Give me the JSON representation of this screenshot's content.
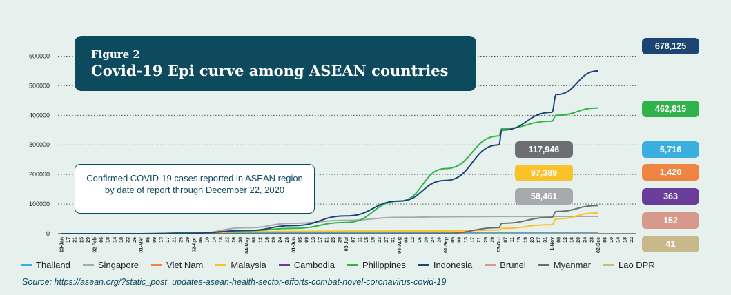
{
  "figure": {
    "label": "Figure 2",
    "title": "Covid-19 Epi curve among ASEAN countries"
  },
  "note": "Confirmed COVID-19 cases reported in ASEAN region by date of report through December 22, 2020",
  "source": "Source: https://asean.org/?static_post=updates-asean-health-sector-efforts-combat-novel-coronavirus-covid-19",
  "colors": {
    "thailand": "#3aaee0",
    "singapore": "#a7a9ac",
    "vietnam": "#f08543",
    "malaysia": "#fbc12a",
    "cambodia": "#6a3d9a",
    "philippines": "#2fb34a",
    "indonesia": "#1d4473",
    "brunei": "#d7998b",
    "myanmar": "#6d6e71",
    "laos": "#c9b98a"
  },
  "badges": [
    {
      "id": "indonesia",
      "label": "678,125",
      "color": "#1d4473"
    },
    {
      "id": "philippines",
      "label": "462,815",
      "color": "#2fb34a"
    },
    {
      "id": "thailand",
      "label": "5,716",
      "color": "#3aaee0"
    },
    {
      "id": "vietnam",
      "label": "1,420",
      "color": "#f08543"
    },
    {
      "id": "cambodia",
      "label": "363",
      "color": "#6a3d9a"
    },
    {
      "id": "brunei",
      "label": "152",
      "color": "#d7998b"
    },
    {
      "id": "laos",
      "label": "41",
      "color": "#c9b98a"
    },
    {
      "id": "myanmar",
      "label": "117,946",
      "color": "#6d6e71"
    },
    {
      "id": "malaysia",
      "label": "97,389",
      "color": "#fbc12a"
    },
    {
      "id": "singapore",
      "label": "58,461",
      "color": "#a7a9ac"
    }
  ],
  "chart_data": {
    "type": "line",
    "title": "Covid-19 Epi curve among ASEAN countries",
    "xlabel": "",
    "ylabel": "",
    "ylim": [
      0,
      650000
    ],
    "yticks": [
      0,
      100000,
      200000,
      300000,
      400000,
      500000,
      600000
    ],
    "ytick_labels": [
      "0",
      "100000",
      "200000",
      "300000",
      "400000",
      "500000",
      "600000"
    ],
    "grid": "dotted horizontal",
    "legend": "bottom",
    "x_tick_labels": [
      "13-Jan",
      "17",
      "21",
      "25",
      "29",
      "02-Feb",
      "06",
      "10",
      "14",
      "18",
      "22",
      "26",
      "01-Mar",
      "05",
      "09",
      "13",
      "17",
      "21",
      "25",
      "29",
      "02-Apr",
      "06",
      "10",
      "14",
      "18",
      "22",
      "26",
      "30",
      "04-May",
      "08",
      "12",
      "16",
      "20",
      "24",
      "28",
      "01-Jun",
      "05",
      "09",
      "13",
      "17",
      "21",
      "25",
      "29",
      "03-Jul",
      "07",
      "11",
      "15",
      "19",
      "23",
      "27",
      "31",
      "04-Aug",
      "08",
      "12",
      "16",
      "20",
      "24",
      "28",
      "01-Sep",
      "05",
      "09",
      "13",
      "17",
      "21",
      "25",
      "29",
      "03-Oct",
      "07",
      "11",
      "15",
      "19",
      "23",
      "27",
      "31",
      "1-Nov",
      "08",
      "12",
      "16",
      "20",
      "24",
      "28",
      "02-Dec",
      "06",
      "10",
      "14",
      "18",
      "22"
    ],
    "x": [
      "13-Jan",
      "02-Feb",
      "01-Mar",
      "02-Apr",
      "04-May",
      "01-Jun",
      "03-Jul",
      "04-Aug",
      "01-Sep",
      "03-Oct",
      "15-Oct",
      "1-Nov",
      "16-Nov",
      "02-Dec",
      "22-Dec"
    ],
    "series": [
      {
        "name": "Thailand",
        "color": "#3aaee0",
        "values": [
          0,
          0,
          0,
          1500,
          3000,
          3100,
          3200,
          3300,
          3400,
          3600,
          3700,
          3800,
          3900,
          4200,
          5716
        ]
      },
      {
        "name": "Singapore",
        "color": "#a7a9ac",
        "values": [
          0,
          20,
          100,
          1300,
          20000,
          35000,
          45000,
          55000,
          57000,
          57900,
          58000,
          58100,
          58200,
          58300,
          58461
        ]
      },
      {
        "name": "Viet Nam",
        "color": "#f08543",
        "values": [
          0,
          10,
          20,
          200,
          280,
          330,
          360,
          700,
          1000,
          1100,
          1140,
          1200,
          1300,
          1360,
          1420
        ]
      },
      {
        "name": "Malaysia",
        "color": "#fbc12a",
        "values": [
          0,
          10,
          30,
          3000,
          6300,
          7900,
          8600,
          9000,
          9300,
          12000,
          18000,
          30000,
          50000,
          70000,
          97389
        ]
      },
      {
        "name": "Cambodia",
        "color": "#6a3d9a",
        "values": [
          0,
          1,
          2,
          100,
          122,
          125,
          141,
          243,
          274,
          283,
          290,
          300,
          305,
          340,
          363
        ]
      },
      {
        "name": "Philippines",
        "color": "#2fb34a",
        "values": [
          0,
          5,
          10,
          3000,
          10000,
          18000,
          38000,
          110000,
          220000,
          330000,
          355000,
          380000,
          400000,
          425000,
          462815
        ]
      },
      {
        "name": "Indonesia",
        "color": "#1d4473",
        "values": [
          0,
          0,
          0,
          1800,
          11000,
          27000,
          60000,
          110000,
          180000,
          300000,
          350000,
          410000,
          470000,
          550000,
          678125
        ]
      },
      {
        "name": "Brunei",
        "color": "#d7998b",
        "values": [
          0,
          0,
          0,
          130,
          138,
          141,
          141,
          141,
          144,
          146,
          147,
          148,
          149,
          150,
          152
        ]
      },
      {
        "name": "Myanmar",
        "color": "#6d6e71",
        "values": [
          0,
          0,
          0,
          20,
          150,
          220,
          300,
          360,
          800,
          20000,
          35000,
          55000,
          75000,
          95000,
          117946
        ]
      },
      {
        "name": "Lao DPR",
        "color": "#c9b98a",
        "values": [
          0,
          0,
          0,
          10,
          19,
          19,
          19,
          20,
          22,
          23,
          24,
          25,
          39,
          40,
          41
        ]
      }
    ]
  }
}
